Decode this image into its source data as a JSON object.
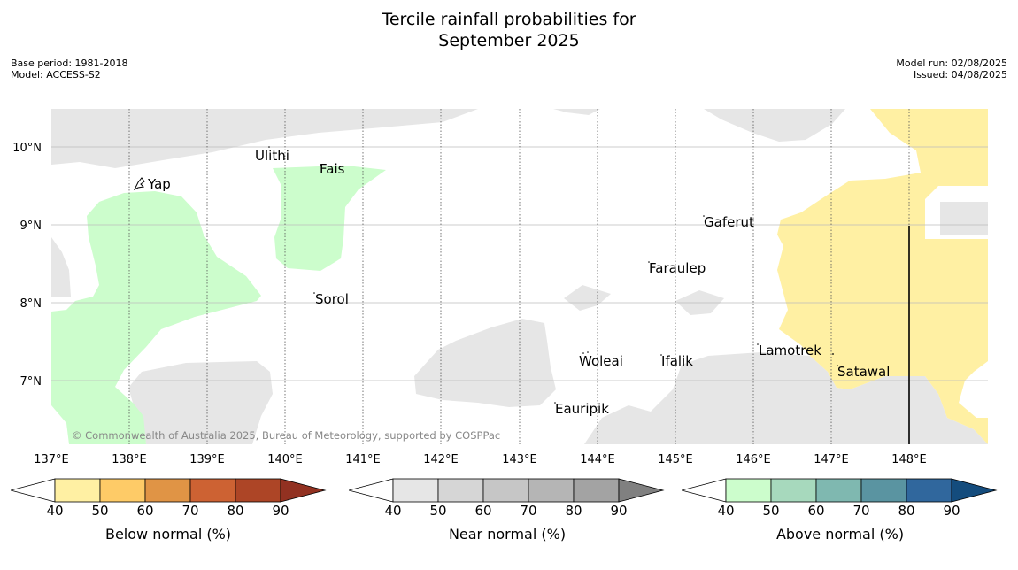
{
  "header": {
    "title_line1": "Tercile rainfall probabilities for",
    "title_line2": "September 2025",
    "base_period": "Base period: 1981-2018",
    "model": "Model: ACCESS-S2",
    "model_run": "Model run: 02/08/2025",
    "issued": "Issued: 04/08/2025"
  },
  "map": {
    "lon_ticks": [
      "137°E",
      "138°E",
      "139°E",
      "140°E",
      "141°E",
      "142°E",
      "143°E",
      "144°E",
      "145°E",
      "146°E",
      "147°E",
      "148°E"
    ],
    "lat_ticks": [
      "10°N",
      "9°N",
      "8°N",
      "7°N"
    ],
    "places": [
      "Ulithi",
      "Fais",
      "Yap",
      "Gaferut",
      "Faraulep",
      "Sorol",
      "Lamotrek",
      "Woleai",
      "Ifalik",
      "Satawal",
      "Eauripik"
    ],
    "copyright": "© Commonwealth of Australia 2025, Bureau of Meteorology, supported by COSPPac"
  },
  "colorbars": [
    {
      "label": "Below normal (%)",
      "ticks": [
        "40",
        "50",
        "60",
        "70",
        "80",
        "90"
      ],
      "colors": [
        "#fff0a3",
        "#fecb67",
        "#e09445",
        "#cd6233",
        "#ad4526",
        "#923121"
      ]
    },
    {
      "label": "Near normal (%)",
      "ticks": [
        "40",
        "50",
        "60",
        "70",
        "80",
        "90"
      ],
      "colors": [
        "#e6e6e6",
        "#d6d6d6",
        "#c6c6c6",
        "#b5b5b5",
        "#a3a3a3",
        "#808080"
      ]
    },
    {
      "label": "Above normal (%)",
      "ticks": [
        "40",
        "50",
        "60",
        "70",
        "80",
        "90"
      ],
      "colors": [
        "#ccfdcc",
        "#a7d9bd",
        "#7fb8b0",
        "#5a94a1",
        "#30679d",
        "#144c7d"
      ]
    }
  ]
}
